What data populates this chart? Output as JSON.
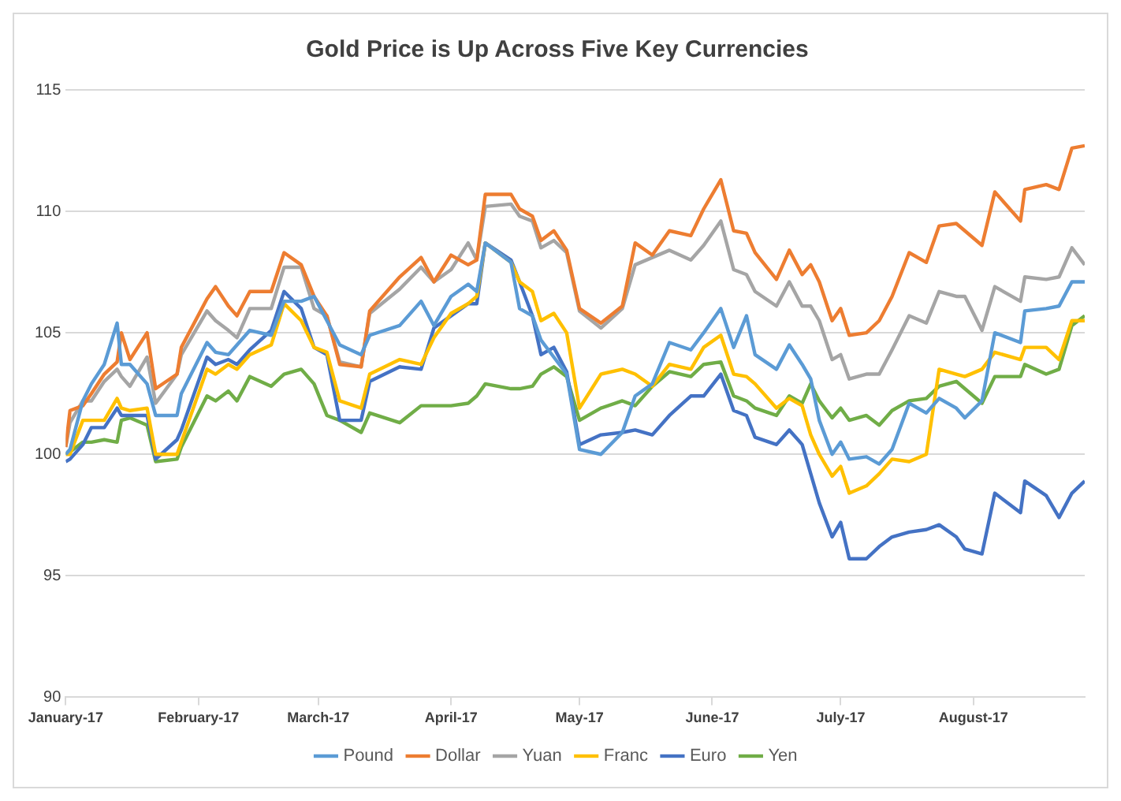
{
  "chart_data": {
    "type": "line",
    "title": "Gold Price is Up Across Five Key Currencies",
    "x": [
      "2017-01-01",
      "2017-01-02",
      "2017-01-05",
      "2017-01-07",
      "2017-01-10",
      "2017-01-13",
      "2017-01-14",
      "2017-01-16",
      "2017-01-20",
      "2017-01-22",
      "2017-01-27",
      "2017-01-28",
      "2017-02-03",
      "2017-02-05",
      "2017-02-08",
      "2017-02-10",
      "2017-02-13",
      "2017-02-18",
      "2017-02-21",
      "2017-02-25",
      "2017-02-28",
      "2017-03-03",
      "2017-03-06",
      "2017-03-11",
      "2017-03-13",
      "2017-03-20",
      "2017-03-25",
      "2017-03-28",
      "2017-04-01",
      "2017-04-05",
      "2017-04-07",
      "2017-04-09",
      "2017-04-15",
      "2017-04-17",
      "2017-04-20",
      "2017-04-22",
      "2017-04-25",
      "2017-04-28",
      "2017-05-01",
      "2017-05-06",
      "2017-05-11",
      "2017-05-14",
      "2017-05-18",
      "2017-05-22",
      "2017-05-27",
      "2017-05-30",
      "2017-06-03",
      "2017-06-06",
      "2017-06-09",
      "2017-06-11",
      "2017-06-16",
      "2017-06-19",
      "2017-06-22",
      "2017-06-24",
      "2017-06-26",
      "2017-06-29",
      "2017-07-01",
      "2017-07-03",
      "2017-07-07",
      "2017-07-10",
      "2017-07-13",
      "2017-07-17",
      "2017-07-21",
      "2017-07-24",
      "2017-07-28",
      "2017-07-30",
      "2017-08-03",
      "2017-08-06",
      "2017-08-12",
      "2017-08-13",
      "2017-08-18",
      "2017-08-21",
      "2017-08-24",
      "2017-08-27"
    ],
    "series": [
      {
        "name": "Pound",
        "color": "#5b9bd5",
        "values": [
          100,
          100.2,
          102.2,
          102.9,
          103.7,
          105.4,
          103.7,
          103.7,
          102.9,
          101.6,
          101.6,
          102.5,
          104.6,
          104.2,
          104.1,
          104.5,
          105.1,
          104.9,
          106.3,
          106.3,
          106.5,
          105.5,
          104.5,
          104.1,
          104.9,
          105.3,
          106.3,
          105.3,
          106.5,
          107,
          106.7,
          108.7,
          107.9,
          106,
          105.7,
          104.7,
          104,
          103.3,
          100.2,
          100,
          100.9,
          102.4,
          102.9,
          104.6,
          104.3,
          105,
          106,
          104.4,
          105.7,
          104.1,
          103.5,
          104.5,
          103.7,
          103.1,
          101.4,
          100,
          100.5,
          99.8,
          99.9,
          99.6,
          100.2,
          102.1,
          101.7,
          102.3,
          101.9,
          101.5,
          102.2,
          105,
          104.6,
          105.9,
          106,
          106.1,
          107.1,
          107.1
        ]
      },
      {
        "name": "Dollar",
        "color": "#ed7d31",
        "values": [
          100.3,
          101.8,
          102,
          102.5,
          103.3,
          103.8,
          105,
          103.9,
          105,
          102.7,
          103.3,
          104.4,
          106.4,
          106.9,
          106.1,
          105.7,
          106.7,
          106.7,
          108.3,
          107.8,
          106.5,
          105.7,
          103.7,
          103.6,
          105.9,
          107.3,
          108.1,
          107.1,
          108.2,
          107.8,
          108,
          110.7,
          110.7,
          110.1,
          109.8,
          108.8,
          109.2,
          108.4,
          106,
          105.4,
          106.1,
          108.7,
          108.2,
          109.2,
          109,
          110.1,
          111.3,
          109.2,
          109.1,
          108.3,
          107.2,
          108.4,
          107.4,
          107.8,
          107.1,
          105.5,
          106,
          104.9,
          105,
          105.5,
          106.5,
          108.3,
          107.9,
          109.4,
          109.5,
          109.2,
          108.6,
          110.8,
          109.6,
          110.9,
          111.1,
          110.9,
          112.6,
          112.7
        ]
      },
      {
        "name": "Yuan",
        "color": "#a5a5a5",
        "values": [
          100.3,
          101.3,
          102.2,
          102.2,
          103,
          103.5,
          103.2,
          102.8,
          104,
          102.1,
          103.3,
          104.1,
          105.9,
          105.5,
          105.1,
          104.8,
          106,
          106,
          107.7,
          107.7,
          106,
          105.7,
          103.8,
          103.6,
          105.8,
          106.8,
          107.7,
          107.1,
          107.6,
          108.7,
          108,
          110.2,
          110.3,
          109.8,
          109.6,
          108.5,
          108.8,
          108.3,
          105.9,
          105.2,
          106,
          107.8,
          108.1,
          108.4,
          108,
          108.6,
          109.6,
          107.6,
          107.4,
          106.7,
          106.1,
          107.1,
          106.1,
          106.1,
          105.5,
          103.9,
          104.1,
          103.1,
          103.3,
          103.3,
          104.3,
          105.7,
          105.4,
          106.7,
          106.5,
          106.5,
          105.1,
          106.9,
          106.3,
          107.3,
          107.2,
          107.3,
          108.5,
          107.8
        ]
      },
      {
        "name": "Franc",
        "color": "#ffc000",
        "values": [
          100,
          100,
          101.4,
          101.4,
          101.4,
          102.3,
          101.9,
          101.8,
          101.9,
          100,
          100,
          100.5,
          103.5,
          103.3,
          103.7,
          103.5,
          104.1,
          104.5,
          106.2,
          105.5,
          104.4,
          104.2,
          102.2,
          101.9,
          103.3,
          103.9,
          103.7,
          104.8,
          105.8,
          106.2,
          106.5,
          108.7,
          107.9,
          107.1,
          106.7,
          105.5,
          105.8,
          105,
          101.9,
          103.3,
          103.5,
          103.3,
          102.8,
          103.7,
          103.5,
          104.4,
          104.9,
          103.3,
          103.2,
          102.9,
          101.9,
          102.3,
          102,
          100.8,
          100,
          99.1,
          99.5,
          98.4,
          98.7,
          99.2,
          99.8,
          99.7,
          100,
          103.5,
          103.3,
          103.2,
          103.5,
          104.2,
          103.9,
          104.4,
          104.4,
          103.9,
          105.5,
          105.5
        ]
      },
      {
        "name": "Euro",
        "color": "#4472c4",
        "values": [
          99.7,
          99.8,
          100.4,
          101.1,
          101.1,
          101.9,
          101.6,
          101.6,
          101.6,
          99.8,
          100.6,
          101,
          104,
          103.7,
          103.9,
          103.7,
          104.3,
          105.1,
          106.7,
          106,
          104.4,
          104.1,
          101.4,
          101.4,
          103,
          103.6,
          103.5,
          105.2,
          105.7,
          106.2,
          106.2,
          108.7,
          108,
          107.1,
          105.7,
          104.1,
          104.4,
          103.4,
          100.4,
          100.8,
          100.9,
          101,
          100.8,
          101.6,
          102.4,
          102.4,
          103.3,
          101.8,
          101.6,
          100.7,
          100.4,
          101,
          100.4,
          99.2,
          98,
          96.6,
          97.2,
          95.7,
          95.7,
          96.2,
          96.6,
          96.8,
          96.9,
          97.1,
          96.6,
          96.1,
          95.9,
          98.4,
          97.6,
          98.9,
          98.3,
          97.4,
          98.4,
          98.9
        ]
      },
      {
        "name": "Yen",
        "color": "#70ad47",
        "values": [
          100,
          100.1,
          100.5,
          100.5,
          100.6,
          100.5,
          101.4,
          101.5,
          101.2,
          99.7,
          99.8,
          100.3,
          102.4,
          102.2,
          102.6,
          102.2,
          103.2,
          102.8,
          103.3,
          103.5,
          102.9,
          101.6,
          101.4,
          100.9,
          101.7,
          101.3,
          102,
          102,
          102,
          102.1,
          102.4,
          102.9,
          102.7,
          102.7,
          102.8,
          103.3,
          103.6,
          103.2,
          101.4,
          101.9,
          102.2,
          102,
          102.8,
          103.4,
          103.2,
          103.7,
          103.8,
          102.4,
          102.2,
          101.9,
          101.6,
          102.4,
          102.1,
          102.9,
          102.2,
          101.5,
          101.9,
          101.4,
          101.6,
          101.2,
          101.8,
          102.2,
          102.3,
          102.8,
          103,
          102.7,
          102.1,
          103.2,
          103.2,
          103.7,
          103.3,
          103.5,
          105.3,
          105.7
        ]
      }
    ],
    "xlim": [
      "2017-01-01",
      "2017-08-27"
    ],
    "xticks": [
      {
        "value": "2017-01-01",
        "label": "January-17"
      },
      {
        "value": "2017-02-01",
        "label": "February-17"
      },
      {
        "value": "2017-03-01",
        "label": "March-17"
      },
      {
        "value": "2017-04-01",
        "label": "April-17"
      },
      {
        "value": "2017-05-01",
        "label": "May-17"
      },
      {
        "value": "2017-06-01",
        "label": "June-17"
      },
      {
        "value": "2017-07-01",
        "label": "July-17"
      },
      {
        "value": "2017-08-01",
        "label": "August-17"
      }
    ],
    "ylim": [
      90,
      115
    ],
    "yticks": [
      90,
      95,
      100,
      105,
      110,
      115
    ],
    "grid": "y",
    "legend": "bottom",
    "marker": "none",
    "line_style": "solid"
  }
}
